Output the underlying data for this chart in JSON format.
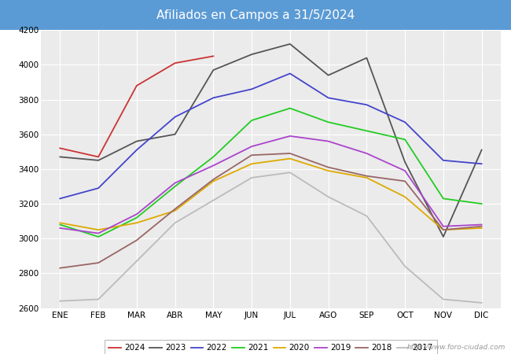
{
  "title": "Afiliados en Campos a 31/5/2024",
  "title_bg": "#5b9bd5",
  "title_color": "white",
  "ylim": [
    2600,
    4200
  ],
  "yticks": [
    2600,
    2800,
    3000,
    3200,
    3400,
    3600,
    3800,
    4000,
    4200
  ],
  "months": [
    "ENE",
    "FEB",
    "MAR",
    "ABR",
    "MAY",
    "JUN",
    "JUL",
    "AGO",
    "SEP",
    "OCT",
    "NOV",
    "DIC"
  ],
  "watermark": "http://www.foro-ciudad.com",
  "series": [
    {
      "label": "2024",
      "color": "#cc3333",
      "data": [
        3520,
        3470,
        3880,
        4010,
        4050,
        null,
        null,
        null,
        null,
        null,
        null,
        null
      ]
    },
    {
      "label": "2023",
      "color": "#555555",
      "data": [
        3470,
        3450,
        3560,
        3600,
        3970,
        4060,
        4120,
        3940,
        4040,
        3440,
        3010,
        3510
      ]
    },
    {
      "label": "2022",
      "color": "#4444cc",
      "data": [
        3230,
        3290,
        3510,
        3700,
        3810,
        3860,
        3950,
        3810,
        3770,
        3670,
        3450,
        3430
      ]
    },
    {
      "label": "2021",
      "color": "#22cc22",
      "data": [
        3080,
        3010,
        3120,
        3300,
        3470,
        3680,
        3750,
        3670,
        3620,
        3570,
        3230,
        3200
      ]
    },
    {
      "label": "2020",
      "color": "#ddaa00",
      "data": [
        3090,
        3050,
        3090,
        3160,
        3330,
        3430,
        3460,
        3390,
        3350,
        3240,
        3050,
        3060
      ]
    },
    {
      "label": "2019",
      "color": "#aa44cc",
      "data": [
        3060,
        3030,
        3140,
        3320,
        3420,
        3530,
        3590,
        3560,
        3490,
        3390,
        3070,
        3080
      ]
    },
    {
      "label": "2018",
      "color": "#996666",
      "data": [
        2830,
        2860,
        2990,
        3170,
        3340,
        3480,
        3490,
        3410,
        3360,
        3330,
        3050,
        3070
      ]
    },
    {
      "label": "2017",
      "color": "#bbbbbb",
      "data": [
        2640,
        2650,
        2870,
        3090,
        3220,
        3350,
        3380,
        3240,
        3130,
        2840,
        2650,
        2630
      ]
    }
  ]
}
